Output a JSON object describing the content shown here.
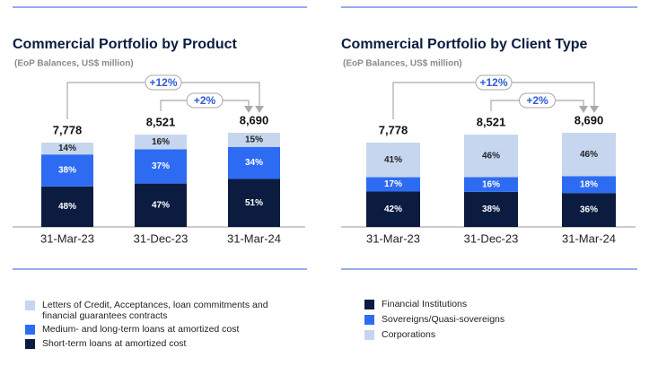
{
  "chart_data": [
    {
      "type": "bar",
      "stacked": true,
      "title": "Commercial Portfolio by Product",
      "subtitle": "(EoP Balances, US$ million)",
      "categories": [
        "31-Mar-23",
        "31-Dec-23",
        "31-Mar-24"
      ],
      "totals": {
        "values": [
          7778,
          8521,
          8690
        ],
        "value_labels": [
          "7,778",
          "8,521",
          "8,690"
        ]
      },
      "series": [
        {
          "name": "Short-term loans at amortized cost",
          "color": "#0b1c40",
          "label_color": "#ffffff",
          "values": [
            48,
            47,
            51
          ],
          "value_labels": [
            "48%",
            "47%",
            "51%"
          ]
        },
        {
          "name": "Medium- and long-term loans at amortized cost",
          "color": "#2d6cf2",
          "label_color": "#ffffff",
          "values": [
            38,
            37,
            34
          ],
          "value_labels": [
            "38%",
            "37%",
            "34%"
          ]
        },
        {
          "name": "Letters of Credit, Acceptances, loan commitments and financial guarantees contracts",
          "color": "#c6d6ef",
          "label_color": "#222222",
          "values": [
            14,
            16,
            15
          ],
          "value_labels": [
            "14%",
            "16%",
            "15%"
          ]
        }
      ],
      "legend_reverse": true,
      "comparisons": [
        {
          "label": "+12%",
          "from": "31-Mar-23",
          "to": "31-Mar-24"
        },
        {
          "label": "+2%",
          "from": "31-Dec-23",
          "to": "31-Mar-24"
        }
      ]
    },
    {
      "type": "bar",
      "stacked": true,
      "title": "Commercial Portfolio by Client Type",
      "subtitle": "(EoP Balances, US$ million)",
      "categories": [
        "31-Mar-23",
        "31-Dec-23",
        "31-Mar-24"
      ],
      "totals": {
        "values": [
          7778,
          8521,
          8690
        ],
        "value_labels": [
          "7,778",
          "8,521",
          "8,690"
        ]
      },
      "series": [
        {
          "name": "Financial Institutions",
          "color": "#0b1c40",
          "label_color": "#ffffff",
          "values": [
            42,
            38,
            36
          ],
          "value_labels": [
            "42%",
            "38%",
            "36%"
          ]
        },
        {
          "name": "Sovereigns/Quasi-sovereigns",
          "color": "#2d6cf2",
          "label_color": "#ffffff",
          "values": [
            17,
            16,
            18
          ],
          "value_labels": [
            "17%",
            "16%",
            "18%"
          ]
        },
        {
          "name": "Corporations",
          "color": "#c6d6ef",
          "label_color": "#222222",
          "values": [
            41,
            46,
            46
          ],
          "value_labels": [
            "41%",
            "46%",
            "46%"
          ]
        }
      ],
      "legend_reverse": false,
      "comparisons": [
        {
          "label": "+12%",
          "from": "31-Mar-23",
          "to": "31-Mar-24"
        },
        {
          "label": "+2%",
          "from": "31-Dec-23",
          "to": "31-Mar-24"
        }
      ]
    }
  ]
}
